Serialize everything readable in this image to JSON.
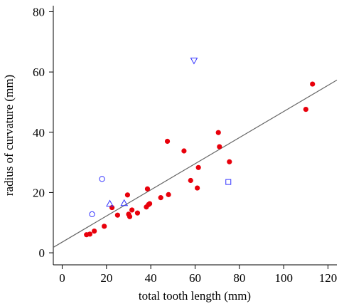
{
  "chart_data": {
    "type": "scatter",
    "title": "",
    "xlabel": "total tooth length (mm)",
    "ylabel": "radius of curvature (mm)",
    "xlim": [
      -4,
      124
    ],
    "ylim": [
      -4,
      82
    ],
    "x_ticks": [
      0,
      20,
      40,
      60,
      80,
      100,
      120
    ],
    "y_ticks": [
      0,
      20,
      40,
      60,
      80
    ],
    "grid": false,
    "legend": "none",
    "series": [
      {
        "marker": "filled-circle",
        "color": "#e8000b",
        "points": [
          [
            11,
            6
          ],
          [
            12.5,
            6.2
          ],
          [
            14.5,
            7.2
          ],
          [
            19,
            8.8
          ],
          [
            22.5,
            15
          ],
          [
            25,
            12.5
          ],
          [
            29.5,
            19.2
          ],
          [
            30,
            12.8
          ],
          [
            30.5,
            12
          ],
          [
            31.5,
            14.2
          ],
          [
            34,
            13.2
          ],
          [
            38,
            15.2
          ],
          [
            38.5,
            21.2
          ],
          [
            39,
            16
          ],
          [
            39.5,
            16.3
          ],
          [
            44.5,
            18.3
          ],
          [
            47.5,
            37
          ],
          [
            48,
            19.3
          ],
          [
            55,
            33.8
          ],
          [
            58,
            24
          ],
          [
            61,
            21.5
          ],
          [
            61.5,
            28.3
          ],
          [
            70.5,
            39.9
          ],
          [
            71,
            35.2
          ],
          [
            75.5,
            30.2
          ],
          [
            110,
            47.6
          ],
          [
            113,
            56
          ]
        ]
      },
      {
        "marker": "open-circle",
        "color": "#3333ff",
        "points": [
          [
            13.5,
            12.8
          ],
          [
            18,
            24.5
          ]
        ]
      },
      {
        "marker": "open-triangle-up",
        "color": "#3333ff",
        "points": [
          [
            21.5,
            16.3
          ],
          [
            28,
            16.5
          ]
        ]
      },
      {
        "marker": "open-triangle-down",
        "color": "#3333ff",
        "points": [
          [
            59.5,
            63.8
          ]
        ]
      },
      {
        "marker": "open-square",
        "color": "#3333ff",
        "points": [
          [
            75,
            23.5
          ]
        ]
      }
    ],
    "regression_line": {
      "color": "#666666",
      "x": [
        -4,
        124
      ],
      "y": [
        1.8,
        57.3
      ]
    }
  }
}
